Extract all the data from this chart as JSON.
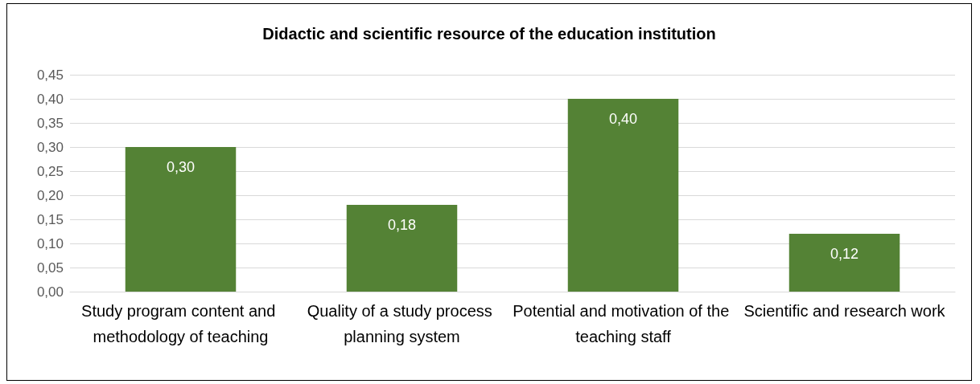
{
  "chart_data": {
    "type": "bar",
    "title": "Didactic and scientific resource of the education institution",
    "categories": [
      "Study program content and methodology of teaching",
      "Quality of a study process planning system",
      "Potential and motivation of the teaching staff",
      "Scientific and research work"
    ],
    "values": [
      0.3,
      0.18,
      0.4,
      0.12
    ],
    "value_labels": [
      "0,30",
      "0,18",
      "0,40",
      "0,12"
    ],
    "color": "#548235",
    "ylim": [
      0,
      0.45
    ],
    "yticks": [
      {
        "value": 0,
        "label": "0,00"
      },
      {
        "value": 0.05,
        "label": "0,05"
      },
      {
        "value": 0.1,
        "label": "0,10"
      },
      {
        "value": 0.15,
        "label": "0,15"
      },
      {
        "value": 0.2,
        "label": "0,20"
      },
      {
        "value": 0.25,
        "label": "0,25"
      },
      {
        "value": 0.3,
        "label": "0,30"
      },
      {
        "value": 0.35,
        "label": "0,35"
      },
      {
        "value": 0.4,
        "label": "0,40"
      },
      {
        "value": 0.45,
        "label": "0,45"
      }
    ],
    "grid": "y"
  }
}
